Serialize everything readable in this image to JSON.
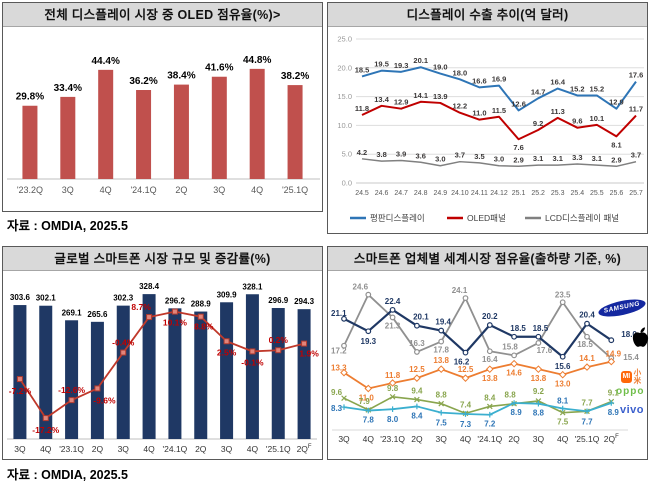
{
  "sources": {
    "top": "자료 : OMDIA, 2025.5",
    "bottom": "자료 : OMDIA, 2025.5"
  },
  "logos": {
    "samsung": "SAMSUNG",
    "xiaomi_mi": "MI",
    "xiaomi_cn": "小米",
    "oppo": "oppo",
    "vivo": "vivo"
  },
  "colors": {
    "panel_header_bg": "#D9D9D9",
    "oled_bar": "#C0504D",
    "market_bar_navy": "#1F3864",
    "growth_line_red": "#C0392B",
    "export_blue": "#2E75B6",
    "export_red": "#C00000",
    "export_gray": "#808080",
    "samsung_navy": "#1F3864",
    "apple_gray": "#909090",
    "xiaomi_orange": "#ED7D31",
    "oppo_green": "#89A54E",
    "vivo_teal": "#3BAFCF"
  },
  "chart_data": [
    {
      "id": "oled_share",
      "type": "bar",
      "title": "전체 디스플레이 시장 중 OLED 점유율(%)>",
      "categories": [
        "'23.2Q",
        "3Q",
        "4Q",
        "'24.1Q",
        "2Q",
        "3Q",
        "4Q",
        "'25.1Q"
      ],
      "values": [
        29.8,
        33.4,
        44.4,
        36.2,
        38.4,
        41.6,
        44.8,
        38.2
      ],
      "value_suffix": "%",
      "bar_color": "#C0504D",
      "ylim": [
        0,
        48
      ],
      "grid": false,
      "source": "자료 : OMDIA, 2025.5"
    },
    {
      "id": "display_export",
      "type": "line",
      "title": "디스플레이 수출 추이(억 달러)",
      "x": [
        "24.5",
        "24.6",
        "24.7",
        "24.8",
        "24.9",
        "24.10",
        "24.11",
        "24.12",
        "25.1",
        "25.2",
        "25.3",
        "25.4",
        "25.5",
        "25.6",
        "25.7"
      ],
      "ylim": [
        0,
        25
      ],
      "yticks": [
        "0.0",
        "5.0",
        "10.0",
        "15.0",
        "20.0",
        "25.0"
      ],
      "grid": true,
      "legend_position": "bottom",
      "series": [
        {
          "name": "평판디스플레이",
          "color": "#2E75B6",
          "values": [
            18.5,
            19.5,
            19.3,
            20.1,
            19.0,
            18.0,
            16.6,
            16.9,
            12.6,
            14.7,
            16.4,
            15.2,
            15.2,
            12.9,
            17.6
          ]
        },
        {
          "name": "OLED패널",
          "color": "#C00000",
          "values": [
            11.8,
            13.4,
            12.9,
            14.1,
            13.9,
            12.2,
            11.0,
            11.5,
            7.6,
            9.2,
            11.3,
            9.6,
            10.1,
            8.1,
            11.7
          ]
        },
        {
          "name": "LCD디스플레이 패널",
          "color": "#808080",
          "values": [
            4.2,
            3.8,
            3.9,
            3.6,
            3.0,
            3.7,
            3.5,
            3.0,
            2.9,
            3.1,
            3.1,
            3.3,
            3.1,
            2.9,
            3.7
          ]
        }
      ]
    },
    {
      "id": "smartphone_market",
      "type": "bar+line",
      "title": "글로벌 스마트폰 시장 규모 및 증감률(%)",
      "categories": [
        "3Q",
        "4Q",
        "'23.1Q",
        "2Q",
        "3Q",
        "4Q",
        "'24.1Q",
        "2Q",
        "3Q",
        "4Q",
        "'25.1Q",
        "2Q"
      ],
      "last_category_superscript": "F",
      "bars": {
        "name": "시장 규모",
        "color": "#1F3864",
        "values": [
          303.6,
          302.1,
          269.1,
          265.6,
          302.3,
          328.4,
          296.2,
          288.9,
          309.9,
          328.1,
          296.9,
          294.3
        ]
      },
      "line": {
        "name": "증감률",
        "color": "#C0392B",
        "label_suffix": "%",
        "values": [
          -7.2,
          -17.2,
          -12.6,
          -9.6,
          -0.4,
          8.7,
          10.1,
          8.8,
          2.5,
          -0.1,
          0.2,
          1.9
        ]
      },
      "source": "자료 : OMDIA, 2025.5"
    },
    {
      "id": "vendor_share",
      "type": "line",
      "title": "스마트폰 업체별 세계시장 점유율(출하량 기준, %)",
      "x": [
        "3Q",
        "4Q",
        "'23.1Q",
        "2Q",
        "3Q",
        "4Q",
        "'24.1Q",
        "2Q",
        "3Q",
        "4Q",
        "'25.1Q",
        "2Q"
      ],
      "last_x_superscript": "F",
      "series": [
        {
          "name": "Samsung",
          "logo": "samsung-logo",
          "color": "#1F3864",
          "values": [
            21.1,
            19.3,
            22.4,
            20.1,
            19.4,
            16.2,
            20.2,
            18.5,
            18.5,
            15.6,
            20.4,
            18.0
          ]
        },
        {
          "name": "Apple",
          "logo": "apple-logo",
          "color": "#909090",
          "values": [
            17.2,
            24.6,
            21.3,
            16.3,
            17.8,
            24.1,
            16.4,
            15.8,
            17.6,
            23.5,
            18.5,
            15.4
          ]
        },
        {
          "name": "Xiaomi",
          "logo": "xiaomi-logo",
          "color": "#ED7D31",
          "values": [
            13.3,
            11.0,
            11.8,
            12.5,
            13.8,
            12.5,
            13.8,
            14.6,
            13.8,
            13.0,
            14.1,
            14.9
          ]
        },
        {
          "name": "Oppo",
          "logo": "oppo-logo",
          "color": "#89A54E",
          "values": [
            9.6,
            7.9,
            9.8,
            9.4,
            8.8,
            7.4,
            8.4,
            8.8,
            9.2,
            7.5,
            7.7,
            9.1
          ]
        },
        {
          "name": "Vivo",
          "logo": "vivo-logo",
          "color": "#3BAFCF",
          "values": [
            8.3,
            7.8,
            8.0,
            8.4,
            7.5,
            7.3,
            7.2,
            8.9,
            8.8,
            8.1,
            7.7,
            8.9
          ]
        }
      ]
    }
  ]
}
